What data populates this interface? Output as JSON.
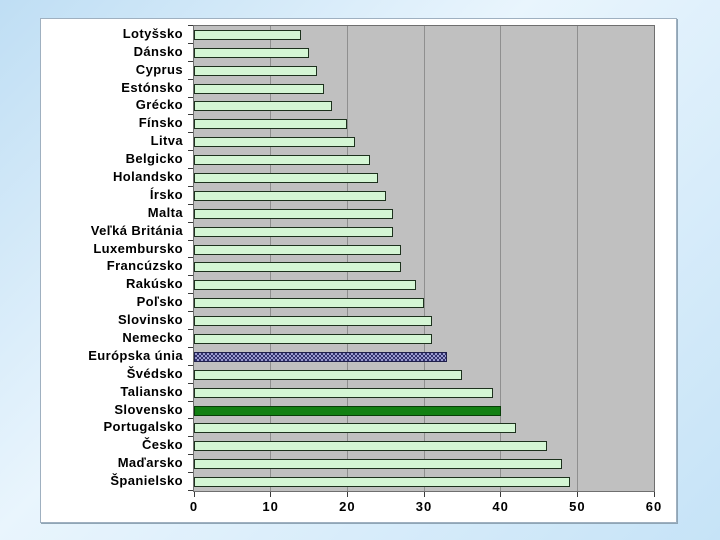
{
  "slide": {
    "background_colors": [
      "#bfdef4",
      "#e9f5fd",
      "#c6e3f7"
    ],
    "panel_bg": "#ffffff"
  },
  "chart_data": {
    "type": "bar",
    "orientation": "horizontal",
    "title": "",
    "xlabel": "",
    "ylabel": "",
    "xlim": [
      0,
      60
    ],
    "x_ticks": [
      "0",
      "10",
      "20",
      "30",
      "40",
      "50",
      "60"
    ],
    "grid": true,
    "legend": null,
    "categories": [
      "Lotyšsko",
      "Dánsko",
      "Cyprus",
      "Estónsko",
      "Grécko",
      "Fínsko",
      "Litva",
      "Belgicko",
      "Holandsko",
      "Írsko",
      "Malta",
      "Veľká Británia",
      "Luxembursko",
      "Francúzsko",
      "Rakúsko",
      "Poľsko",
      "Slovinsko",
      "Nemecko",
      "Európska únia",
      "Švédsko",
      "Taliansko",
      "Slovensko",
      "Portugalsko",
      "Česko",
      "Maďarsko",
      "Španielsko"
    ],
    "values": [
      14,
      15,
      16,
      17,
      18,
      20,
      21,
      23,
      24,
      25,
      26,
      26,
      27,
      27,
      29,
      30,
      31,
      31,
      33,
      35,
      39,
      40,
      42,
      46,
      48,
      49
    ],
    "styles": [
      "default",
      "default",
      "default",
      "default",
      "default",
      "default",
      "default",
      "default",
      "default",
      "default",
      "default",
      "default",
      "default",
      "default",
      "default",
      "default",
      "default",
      "default",
      "eu",
      "default",
      "default",
      "slovakia",
      "default",
      "default",
      "default",
      "default"
    ],
    "colors": {
      "plot_bg": "#c0c0c0",
      "gridline": "#8f8f8f",
      "plot_border": "#6f6f6f",
      "tick": "#3a3a3a",
      "label_text": "#000000",
      "bar_default_fill": "#d4f6d4",
      "bar_default_border": "#1d311d",
      "bar_eu_dark": "#32326e",
      "bar_eu_light": "#9b9bd0",
      "bar_eu_border": "#20204c",
      "bar_slovakia_fill": "#128012",
      "bar_slovakia_border": "#073f07"
    }
  }
}
